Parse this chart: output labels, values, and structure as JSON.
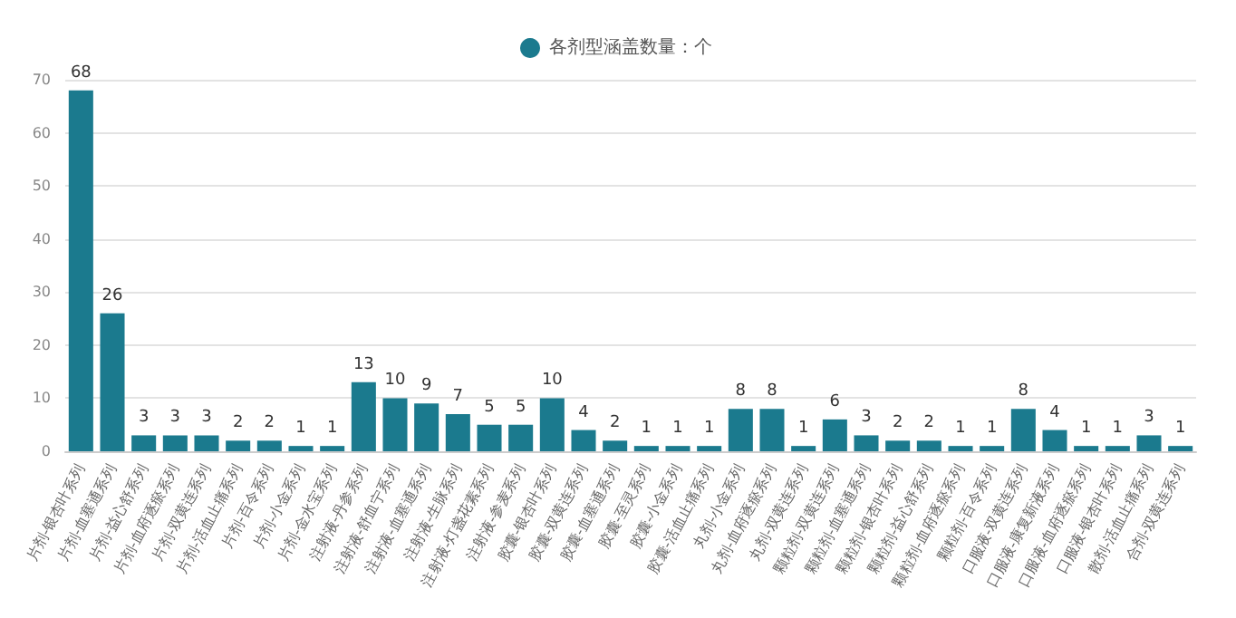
{
  "chart_data": {
    "type": "bar",
    "categories": [
      "片剂-银杏叶系列",
      "片剂-血塞通系列",
      "片剂-益心舒系列",
      "片剂-血府逐瘀系列",
      "片剂-双黄连系列",
      "片剂-活血止痛系列",
      "片剂-百令系列",
      "片剂-小金系列",
      "片剂-金水宝系列",
      "注射液-丹参系列",
      "注射液-舒血宁系列",
      "注射液-血塞通系列",
      "注射液-生脉系列",
      "注射液-灯盏花素系列",
      "注射液-参麦系列",
      "胶囊-银杏叶系列",
      "胶囊-双黄连系列",
      "胶囊-血塞通系列",
      "胶囊-至灵系列",
      "胶囊-小金系列",
      "胶囊-活血止痛系列",
      "丸剂-小金系列",
      "丸剂-血府逐瘀系列",
      "丸剂-双黄连系列",
      "颗粒剂-双黄连系列",
      "颗粒剂-血塞通系列",
      "颗粒剂-银杏叶系列",
      "颗粒剂-益心舒系列",
      "颗粒剂-血府逐瘀系列",
      "颗粒剂-百令系列",
      "口服液-双黄连系列",
      "口服液-康复新液系列",
      "口服液-血府逐瘀系列",
      "口服液-银杏叶系列",
      "散剂-活血止痛系列",
      "合剂-双黄连系列"
    ],
    "series": [
      {
        "name": "各剂型涵盖数量：个",
        "color": "#1b7a8e",
        "values": [
          68,
          26,
          3,
          3,
          3,
          2,
          2,
          1,
          1,
          13,
          10,
          9,
          7,
          5,
          5,
          10,
          4,
          2,
          1,
          1,
          1,
          8,
          8,
          1,
          6,
          3,
          2,
          2,
          1,
          1,
          8,
          4,
          1,
          1,
          3,
          1
        ]
      }
    ],
    "ylim": [
      0,
      70
    ],
    "yticks": [
      0,
      10,
      20,
      30,
      40,
      50,
      60,
      70
    ],
    "grid": "y",
    "legend": "top",
    "data_labels": true
  }
}
